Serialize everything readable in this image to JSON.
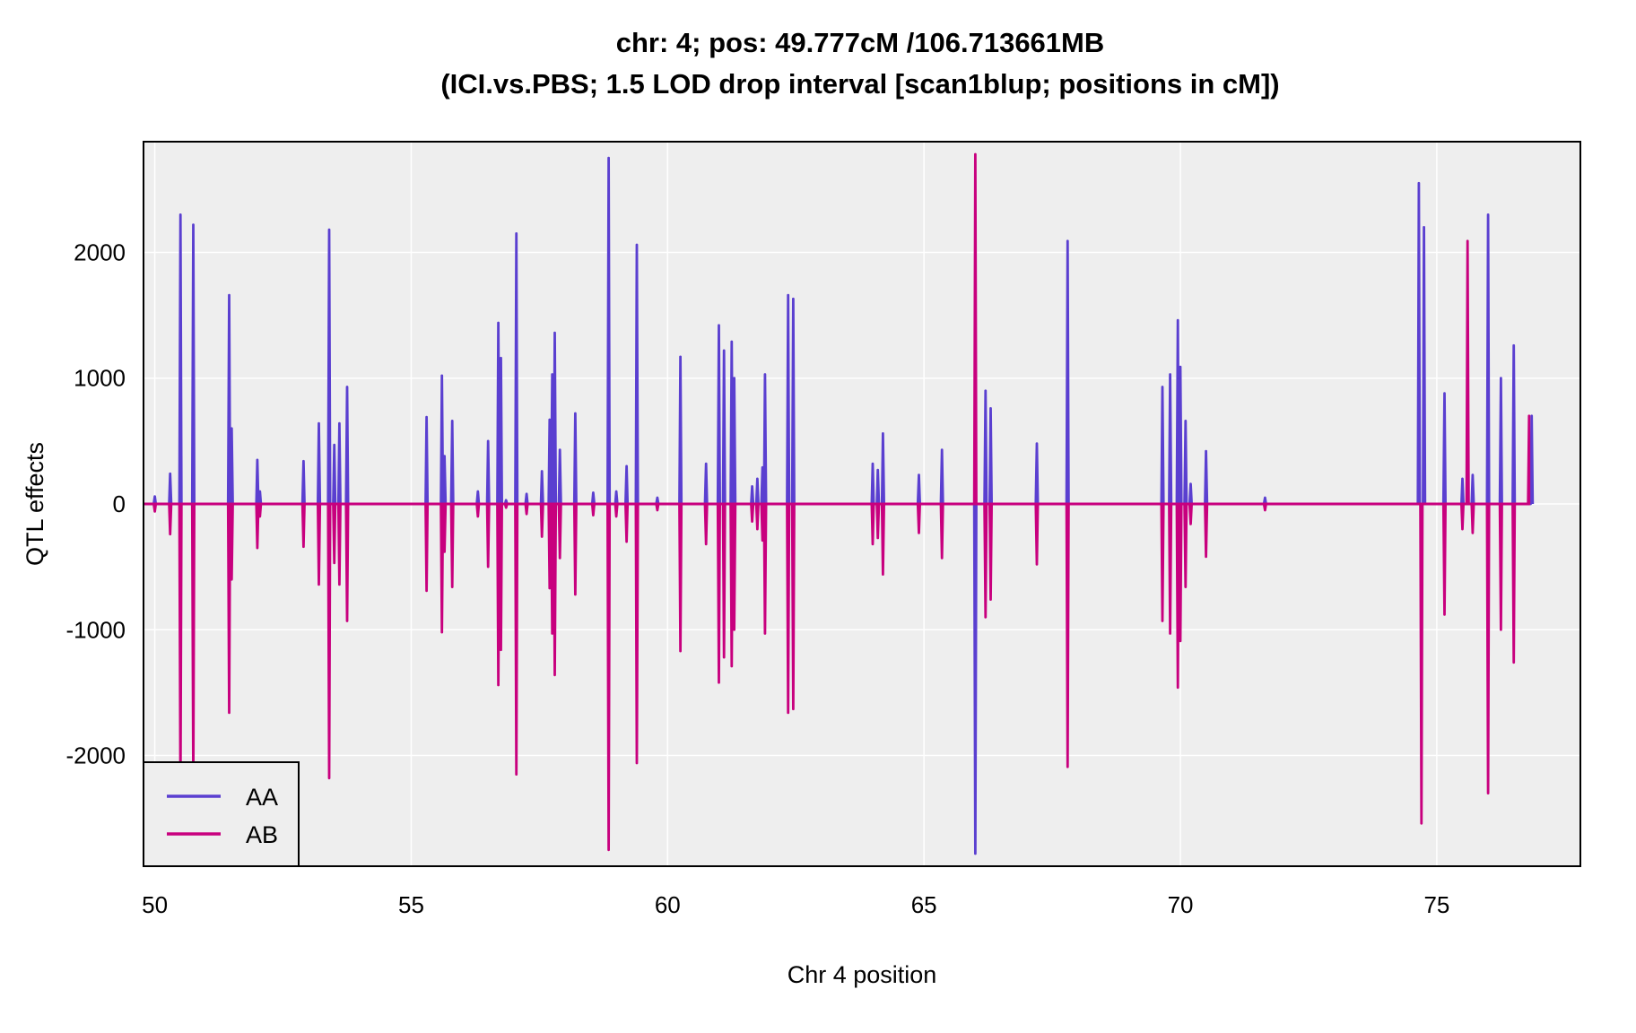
{
  "chart_data": {
    "type": "line",
    "title": "chr: 4; pos: 49.777cM /106.713661MB",
    "subtitle": "(ICI.vs.PBS; 1.5 LOD drop interval [scan1blup; positions in cM])",
    "xlabel": "Chr 4 position",
    "ylabel": "QTL effects",
    "xlim": [
      49.78,
      77.8
    ],
    "ylim": [
      -2880,
      2880
    ],
    "xticks": [
      50,
      55,
      60,
      65,
      70,
      75
    ],
    "yticks": [
      -2000,
      -1000,
      0,
      1000,
      2000
    ],
    "grid": true,
    "legend_position": "bottom-left",
    "colors": {
      "AA": "#5a3fd0",
      "AB": "#c8007e",
      "panel": "#eeeeee",
      "grid": "#ffffff"
    },
    "series": [
      {
        "name": "AA",
        "color": "#5a3fd0"
      },
      {
        "name": "AB",
        "color": "#c8007e"
      }
    ],
    "spikes_AA": [
      [
        50.0,
        60
      ],
      [
        50.3,
        240
      ],
      [
        50.5,
        2300
      ],
      [
        50.75,
        2220
      ],
      [
        51.45,
        1660
      ],
      [
        51.5,
        600
      ],
      [
        52.0,
        350
      ],
      [
        52.05,
        100
      ],
      [
        52.9,
        340
      ],
      [
        53.2,
        640
      ],
      [
        53.4,
        2180
      ],
      [
        53.5,
        470
      ],
      [
        53.6,
        640
      ],
      [
        53.75,
        930
      ],
      [
        55.3,
        690
      ],
      [
        55.6,
        1020
      ],
      [
        55.65,
        380
      ],
      [
        55.8,
        660
      ],
      [
        56.3,
        100
      ],
      [
        56.5,
        500
      ],
      [
        56.7,
        1440
      ],
      [
        56.75,
        1160
      ],
      [
        56.85,
        30
      ],
      [
        57.05,
        2150
      ],
      [
        57.25,
        80
      ],
      [
        57.55,
        260
      ],
      [
        57.7,
        670
      ],
      [
        57.75,
        1030
      ],
      [
        57.8,
        1360
      ],
      [
        57.9,
        430
      ],
      [
        58.2,
        720
      ],
      [
        58.55,
        90
      ],
      [
        58.85,
        2750
      ],
      [
        59.0,
        100
      ],
      [
        59.2,
        300
      ],
      [
        59.4,
        2060
      ],
      [
        59.8,
        50
      ],
      [
        60.25,
        1170
      ],
      [
        60.75,
        320
      ],
      [
        61.0,
        1420
      ],
      [
        61.1,
        1220
      ],
      [
        61.25,
        1290
      ],
      [
        61.3,
        1000
      ],
      [
        61.65,
        140
      ],
      [
        61.75,
        200
      ],
      [
        61.85,
        290
      ],
      [
        61.9,
        1030
      ],
      [
        62.35,
        1660
      ],
      [
        62.45,
        1630
      ],
      [
        64.0,
        320
      ],
      [
        64.1,
        270
      ],
      [
        64.2,
        560
      ],
      [
        64.9,
        230
      ],
      [
        65.35,
        430
      ],
      [
        66.2,
        900
      ],
      [
        66.3,
        760
      ],
      [
        67.2,
        480
      ],
      [
        67.8,
        2090
      ],
      [
        69.65,
        930
      ],
      [
        69.8,
        1030
      ],
      [
        69.95,
        1460
      ],
      [
        70.0,
        1090
      ],
      [
        70.1,
        660
      ],
      [
        70.2,
        160
      ],
      [
        70.5,
        420
      ],
      [
        71.65,
        50
      ],
      [
        74.65,
        2550
      ],
      [
        74.75,
        2200
      ],
      [
        75.15,
        880
      ],
      [
        75.5,
        200
      ],
      [
        75.7,
        230
      ],
      [
        76.0,
        2300
      ],
      [
        76.25,
        1000
      ],
      [
        76.5,
        1260
      ],
      [
        76.85,
        700
      ]
    ],
    "spikes_AB_special": [
      [
        66.0,
        2780
      ],
      [
        74.7,
        -2540
      ],
      [
        75.6,
        2090
      ],
      [
        76.8,
        700
      ]
    ]
  }
}
